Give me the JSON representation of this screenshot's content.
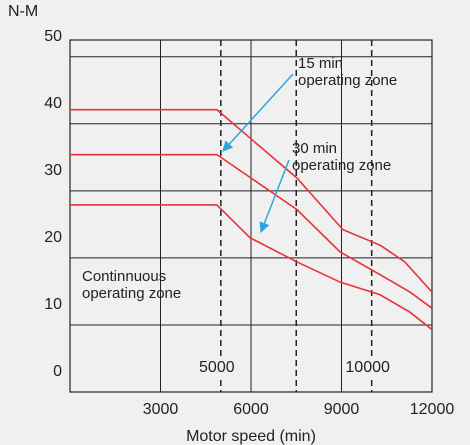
{
  "chart_data": {
    "type": "line",
    "y_unit": "N-M",
    "xlabel": "Motor speed (min)",
    "xlim": [
      0,
      12000
    ],
    "ylim": [
      0,
      52.5
    ],
    "xticks": [
      3000,
      6000,
      9000,
      12000
    ],
    "yticks": [
      0,
      10,
      20,
      30,
      40,
      50
    ],
    "grid": true,
    "speed_markers": [
      {
        "value": 5000,
        "label": "5000"
      },
      {
        "value": 7500
      },
      {
        "value": 10000,
        "label": "10000"
      }
    ],
    "series": [
      {
        "color": "#e8333a",
        "x": [
          0,
          4870,
          7525,
          9050,
          10280,
          11100,
          12000
        ],
        "values": [
          42.1,
          42.1,
          31.9,
          24.2,
          21.9,
          19.4,
          14.9
        ]
      },
      {
        "color": "#e8333a",
        "x": [
          0,
          4870,
          7525,
          8950,
          10280,
          11270,
          12000
        ],
        "values": [
          35.4,
          35.4,
          27.2,
          20.9,
          17.5,
          14.9,
          12.5
        ]
      },
      {
        "color": "#e8333a",
        "x": [
          0,
          4870,
          5970,
          7525,
          8950,
          10280,
          11270,
          12000
        ],
        "values": [
          27.9,
          27.9,
          23.0,
          19.4,
          16.4,
          14.5,
          11.9,
          9.3
        ]
      }
    ],
    "annotations": [
      {
        "lines": [
          "15 min",
          "operating zone"
        ]
      },
      {
        "lines": [
          "30 min",
          "operating zone"
        ]
      },
      {
        "lines": [
          "Continnuous",
          "operating zone"
        ]
      }
    ]
  }
}
